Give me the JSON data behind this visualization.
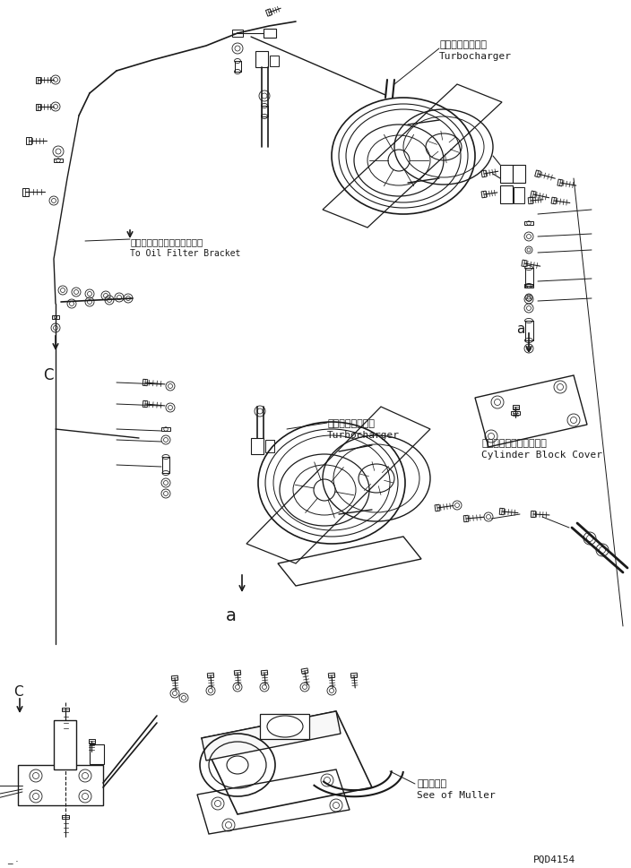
{
  "bg_color": "#ffffff",
  "line_color": "#1a1a1a",
  "fig_width": 7.04,
  "fig_height": 9.7,
  "dpi": 100,
  "part_id": "PQD4154",
  "labels": {
    "turbocharger1_jp": "ターボチャージャ",
    "turbocharger1_en": "Turbocharger",
    "oil_filter_jp": "オイルフィルタブラケットへ",
    "oil_filter_en": "To Oil Filter Bracket",
    "turbocharger2_jp": "ターボチャージャ",
    "turbocharger2_en": "Turbocharger",
    "cylinder_block_jp": "シリンダブロックカバー",
    "cylinder_block_en": "Cylinder Block Cover",
    "muffler_jp": "マフラ参照",
    "muffler_en": "See of Muller",
    "label_C_upper": "C",
    "label_C_lower": "C",
    "label_a_upper": "a",
    "label_a_lower": "a"
  }
}
